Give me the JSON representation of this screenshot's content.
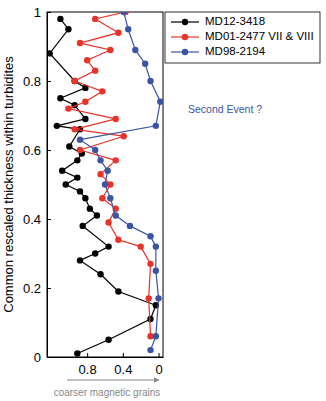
{
  "chart_data": {
    "type": "line",
    "x_label": "coarser magnetic grains",
    "y_label": "Common rescaled thickness within turbidites",
    "xlim": [
      1.25,
      -0.05
    ],
    "xticks": [
      {
        "value": 0.8,
        "label": "0.8"
      },
      {
        "value": 0.4,
        "label": "0.4"
      },
      0
    ],
    "ylim": [
      0,
      1
    ],
    "yticks": [
      0,
      0.2,
      0.4,
      0.6,
      0.8,
      1
    ],
    "grid": false,
    "legend": "upper right",
    "marker": "circle",
    "annotations": [
      {
        "text": "Second Event ?",
        "color": "#3b55a4"
      }
    ],
    "series": [
      {
        "name": "MD12-3418",
        "color": "#000000",
        "x": [
          0.91,
          0.56,
          0.09,
          0.03,
          0.45,
          0.65,
          0.88,
          0.71,
          0.56,
          0.85,
          0.69,
          0.77,
          0.82,
          0.88,
          1.04,
          0.91,
          1.08,
          0.91,
          0.86,
          1.0,
          0.88,
          1.14,
          0.82,
          0.94,
          1.1,
          0.82,
          0.94,
          1.22,
          1.01,
          1.1
        ],
        "values": [
          0.01,
          0.05,
          0.11,
          0.15,
          0.19,
          0.24,
          0.28,
          0.3,
          0.32,
          0.38,
          0.41,
          0.43,
          0.46,
          0.48,
          0.5,
          0.52,
          0.54,
          0.57,
          0.59,
          0.61,
          0.66,
          0.67,
          0.69,
          0.73,
          0.75,
          0.78,
          0.8,
          0.88,
          0.95,
          0.98
        ]
      },
      {
        "name": "MD01-2477 VII & VIII",
        "color": "#e8332a",
        "x": [
          0.09,
          0.11,
          0.09,
          0.2,
          0.45,
          0.56,
          0.48,
          0.63,
          0.54,
          0.65,
          0.48,
          0.88,
          0.39,
          0.94,
          0.48,
          1.01,
          0.82,
          0.63,
          0.94,
          0.71,
          0.8,
          0.54,
          0.88,
          0.45,
          0.71,
          0.37
        ],
        "values": [
          0.06,
          0.17,
          0.27,
          0.32,
          0.34,
          0.39,
          0.43,
          0.46,
          0.5,
          0.53,
          0.57,
          0.6,
          0.64,
          0.66,
          0.69,
          0.72,
          0.74,
          0.77,
          0.8,
          0.83,
          0.86,
          0.89,
          0.91,
          0.94,
          0.98,
          1.0
        ]
      },
      {
        "name": "MD98-2194",
        "color": "#3b55a4",
        "x": [
          0.09,
          0.03,
          0,
          0.03,
          0.03,
          0.09,
          0.32,
          0.48,
          0.54,
          0.6,
          0.57,
          0.65,
          0.71,
          0.88,
          0.03,
          -0.02,
          0.09,
          0.15,
          0.26,
          0.34,
          0.39
        ],
        "values": [
          0.02,
          0.06,
          0.17,
          0.25,
          0.32,
          0.35,
          0.38,
          0.41,
          0.46,
          0.5,
          0.54,
          0.57,
          0.6,
          0.63,
          0.67,
          0.74,
          0.8,
          0.85,
          0.89,
          0.95,
          1.0
        ]
      }
    ]
  }
}
